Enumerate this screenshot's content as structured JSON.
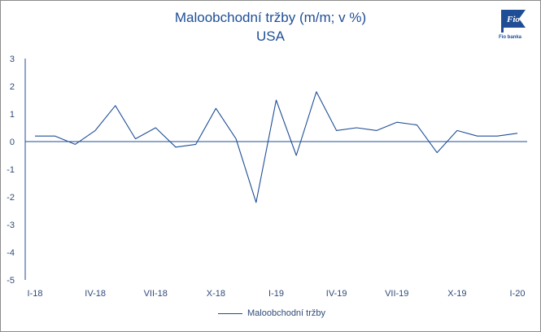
{
  "brand": {
    "logo_text": "Fio",
    "logo_caption": "Fio banka",
    "color": "#1f4e96"
  },
  "chart_data": {
    "type": "line",
    "title": "Maloobchodní tržby (m/m; v %)",
    "subtitle": "USA",
    "xlabel": "",
    "ylabel": "",
    "ylim": [
      -5,
      3
    ],
    "yticks": [
      3,
      2,
      1,
      0,
      -1,
      -2,
      -3,
      -4,
      -5
    ],
    "grid": false,
    "legend_position": "bottom",
    "x_ticks": [
      {
        "label": "I-18",
        "index": 0
      },
      {
        "label": "IV-18",
        "index": 3
      },
      {
        "label": "VII-18",
        "index": 6
      },
      {
        "label": "X-18",
        "index": 9
      },
      {
        "label": "I-19",
        "index": 12
      },
      {
        "label": "IV-19",
        "index": 15
      },
      {
        "label": "VII-19",
        "index": 18
      },
      {
        "label": "X-19",
        "index": 21
      },
      {
        "label": "I-20",
        "index": 24
      }
    ],
    "series": [
      {
        "name": "Maloobchodní tržby",
        "color": "#1f4e96",
        "values": [
          0.2,
          0.2,
          -0.1,
          0.4,
          1.3,
          0.1,
          0.5,
          -0.2,
          -0.1,
          1.2,
          0.1,
          -2.2,
          1.5,
          -0.5,
          1.8,
          0.4,
          0.5,
          0.4,
          0.7,
          0.6,
          -0.4,
          0.4,
          0.2,
          0.2,
          0.3
        ]
      }
    ]
  }
}
